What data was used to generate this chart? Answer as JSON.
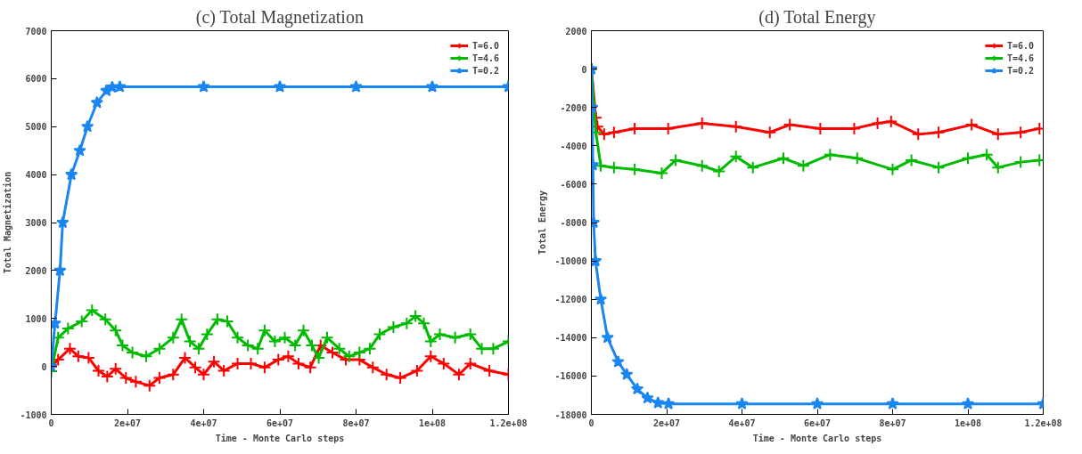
{
  "chart_data": [
    {
      "type": "line",
      "title": "(c) Total Magnetization",
      "xlabel": "Time - Monte Carlo steps",
      "ylabel": "Total Magnetization",
      "xlim": [
        0,
        120000000
      ],
      "ylim": [
        -1000,
        7000
      ],
      "xticks": [
        0,
        {
          "value": 20000000,
          "label": "2e+07"
        },
        {
          "value": 40000000,
          "label": "4e+07"
        },
        {
          "value": 60000000,
          "label": "6e+07"
        },
        {
          "value": 80000000,
          "label": "8e+07"
        },
        {
          "value": 100000000,
          "label": "1e+08"
        },
        {
          "value": 120000000,
          "label": "1.2e+08"
        }
      ],
      "yticks": [
        -1000,
        0,
        1000,
        2000,
        3000,
        4000,
        5000,
        6000,
        7000
      ],
      "grid": false,
      "legend": "top right",
      "series": [
        {
          "name": "T=6.0",
          "color": "#ff0000",
          "marker": "cross",
          "x": [
            0,
            1800000,
            4900000,
            7100000,
            9800000,
            12400000,
            14700000,
            16900000,
            19600000,
            22200000,
            25800000,
            28400000,
            32000000,
            35100000,
            37800000,
            40000000,
            42700000,
            45300000,
            48900000,
            52400000,
            56000000,
            59600000,
            62200000,
            64900000,
            68000000,
            70700000,
            73800000,
            77300000,
            80900000,
            84400000,
            88000000,
            91600000,
            96000000,
            99600000,
            103000000,
            107000000,
            110000000,
            115000000,
            120000000
          ],
          "values": [
            0,
            140,
            370,
            210,
            180,
            -90,
            -210,
            -50,
            -240,
            -320,
            -400,
            -240,
            -170,
            180,
            -20,
            -170,
            100,
            -90,
            60,
            60,
            -20,
            140,
            210,
            60,
            -20,
            440,
            290,
            140,
            140,
            -20,
            -170,
            -240,
            -90,
            210,
            60,
            -170,
            60,
            -90,
            -170
          ]
        },
        {
          "name": "T=4.6",
          "color": "#00bb00",
          "marker": "cross",
          "x": [
            0,
            1800000,
            4400000,
            8000000,
            10700000,
            14200000,
            16900000,
            18700000,
            21300000,
            24900000,
            28400000,
            32000000,
            34200000,
            36400000,
            38700000,
            40900000,
            43600000,
            46200000,
            48900000,
            51600000,
            54200000,
            56000000,
            58700000,
            61300000,
            64000000,
            66200000,
            68400000,
            70200000,
            72400000,
            75600000,
            78200000,
            80900000,
            83600000,
            86200000,
            89800000,
            93300000,
            95600000,
            97800000,
            99600000,
            102000000,
            106000000,
            110000000,
            113000000,
            116000000,
            120000000
          ],
          "values": [
            -100,
            600,
            790,
            940,
            1170,
            980,
            750,
            440,
            290,
            210,
            370,
            600,
            980,
            520,
            370,
            670,
            980,
            940,
            600,
            440,
            370,
            750,
            520,
            600,
            440,
            750,
            440,
            180,
            600,
            370,
            210,
            290,
            370,
            670,
            820,
            900,
            1050,
            900,
            520,
            670,
            600,
            670,
            370,
            370,
            520
          ]
        },
        {
          "name": "T=0.2",
          "color": "#1a86f0",
          "marker": "star",
          "x": [
            0,
            1000000,
            2300000,
            3000000,
            5300000,
            7500000,
            9500000,
            12000000,
            14500000,
            16000000,
            18000000,
            40000000,
            60000000,
            80000000,
            100000000,
            120000000
          ],
          "values": [
            0,
            900,
            2000,
            3000,
            4000,
            4500,
            5000,
            5500,
            5750,
            5820,
            5830,
            5830,
            5830,
            5830,
            5830,
            5830
          ]
        }
      ]
    },
    {
      "type": "line",
      "title": "(d) Total Energy",
      "xlabel": "Time - Monte Carlo steps",
      "ylabel": "Total Energy",
      "xlim": [
        0,
        120000000
      ],
      "ylim": [
        -18000,
        2000
      ],
      "xticks": [
        0,
        {
          "value": 20000000,
          "label": "2e+07"
        },
        {
          "value": 40000000,
          "label": "4e+07"
        },
        {
          "value": 60000000,
          "label": "6e+07"
        },
        {
          "value": 80000000,
          "label": "8e+07"
        },
        {
          "value": 100000000,
          "label": "1e+08"
        },
        {
          "value": 120000000,
          "label": "1.2e+08"
        }
      ],
      "yticks": [
        -18000,
        -16000,
        -14000,
        -12000,
        -10000,
        -8000,
        -6000,
        -4000,
        -2000,
        0,
        2000
      ],
      "grid": false,
      "legend": "top right",
      "series": [
        {
          "name": "T=6.0",
          "color": "#ff0000",
          "marker": "cross",
          "x": [
            0,
            1200000,
            1600000,
            3400000,
            6000000,
            11500000,
            20400000,
            29400000,
            38400000,
            47400000,
            52700000,
            60800000,
            69800000,
            76000000,
            79600000,
            86800000,
            92200000,
            101000000,
            108000000,
            114000000,
            119000000
          ],
          "values": [
            0,
            -2540,
            -3000,
            -3400,
            -3300,
            -3100,
            -3100,
            -2830,
            -3000,
            -3300,
            -2900,
            -3100,
            -3100,
            -2830,
            -2730,
            -3400,
            -3300,
            -2900,
            -3400,
            -3300,
            -3100
          ]
        },
        {
          "name": "T=4.6",
          "color": "#00bb00",
          "marker": "cross",
          "x": [
            0,
            1200000,
            2500000,
            6000000,
            11500000,
            18700000,
            22400000,
            29400000,
            33900000,
            38400000,
            42900000,
            51000000,
            56300000,
            63400000,
            70600000,
            80000000,
            85000000,
            92200000,
            100000000,
            105000000,
            108000000,
            114000000,
            119000000
          ],
          "values": [
            0,
            -3300,
            -5040,
            -5130,
            -5230,
            -5420,
            -4750,
            -5040,
            -5330,
            -4560,
            -5130,
            -4650,
            -5040,
            -4460,
            -4650,
            -5230,
            -4750,
            -5130,
            -4650,
            -4460,
            -5130,
            -4850,
            -4750
          ]
        },
        {
          "name": "T=0.2",
          "color": "#1a86f0",
          "marker": "star",
          "x": [
            0,
            200000,
            400000,
            600000,
            1100000,
            2500000,
            4300000,
            7100000,
            9400000,
            12200000,
            14900000,
            17700000,
            20500000,
            40000000,
            60000000,
            80000000,
            100000000,
            120000000
          ],
          "values": [
            0,
            -2000,
            -5000,
            -8000,
            -10000,
            -12000,
            -14000,
            -15260,
            -15920,
            -16680,
            -17150,
            -17400,
            -17450,
            -17450,
            -17450,
            -17450,
            -17450,
            -17450
          ]
        }
      ]
    }
  ]
}
